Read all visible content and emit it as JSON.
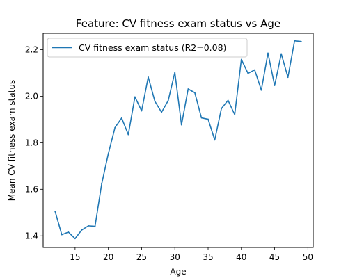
{
  "chart_data": {
    "type": "line",
    "title": "Feature: CV fitness exam status vs Age",
    "xlabel": "Age",
    "ylabel": "Mean CV fitness exam status",
    "xlim": [
      10.2,
      50.8
    ],
    "ylim": [
      1.35,
      2.27
    ],
    "xticks": [
      15,
      20,
      25,
      30,
      35,
      40,
      45,
      50
    ],
    "yticks": [
      1.4,
      1.6,
      1.8,
      2.0,
      2.2
    ],
    "xtick_labels": [
      "15",
      "20",
      "25",
      "30",
      "35",
      "40",
      "45",
      "50"
    ],
    "ytick_labels": [
      "1.4",
      "1.6",
      "1.8",
      "2.0",
      "2.2"
    ],
    "grid": false,
    "legend_position": "upper-left",
    "color": "#1f77b4",
    "series": [
      {
        "name": "CV fitness exam status (R2=0.08)",
        "x": [
          12,
          13,
          14,
          15,
          16,
          17,
          18,
          19,
          20,
          21,
          22,
          23,
          24,
          25,
          26,
          27,
          28,
          29,
          30,
          31,
          32,
          33,
          34,
          35,
          36,
          37,
          38,
          39,
          40,
          41,
          42,
          43,
          44,
          45,
          46,
          47,
          48,
          49
        ],
        "y": [
          1.505,
          1.405,
          1.416,
          1.388,
          1.425,
          1.443,
          1.441,
          1.623,
          1.753,
          1.865,
          1.906,
          1.835,
          1.997,
          1.937,
          2.082,
          1.978,
          1.931,
          1.981,
          2.102,
          1.877,
          2.031,
          2.015,
          1.907,
          1.901,
          1.812,
          1.947,
          1.982,
          1.921,
          2.158,
          2.098,
          2.113,
          2.026,
          2.185,
          2.046,
          2.182,
          2.081,
          2.238,
          2.235
        ]
      }
    ]
  }
}
